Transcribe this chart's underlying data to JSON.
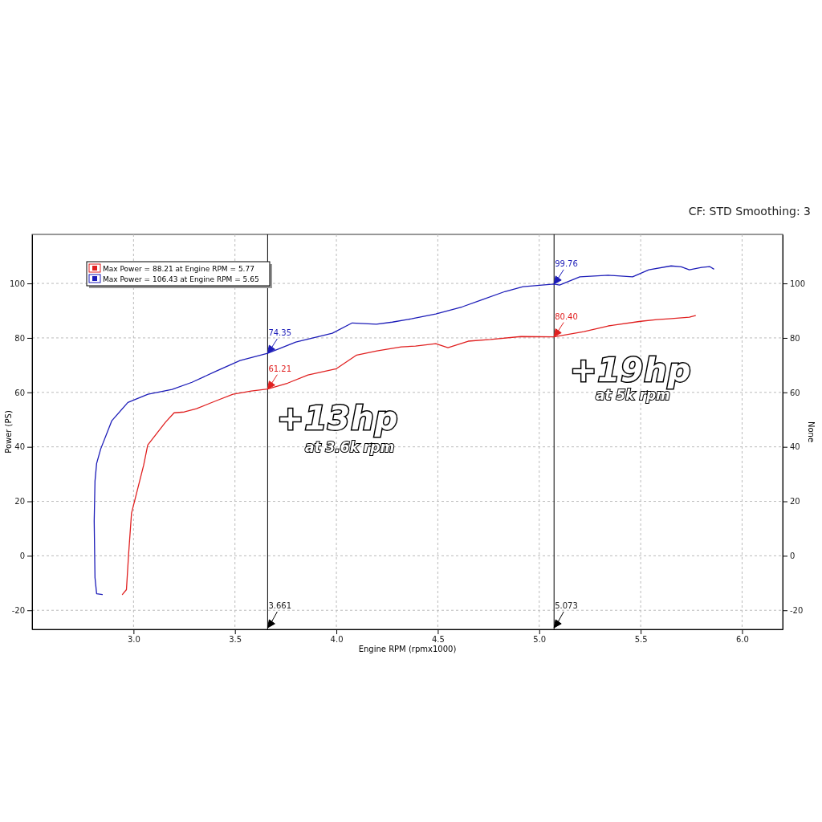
{
  "chart_data": {
    "type": "line",
    "xlabel": "Engine RPM (rpmx1000)",
    "ylabel": "Power (PS)",
    "y2label": "None",
    "xlim": [
      2.5,
      6.2
    ],
    "xticks": [
      {
        "value": 3,
        "label": "3.0"
      },
      {
        "value": 3.5,
        "label": "3.5"
      },
      {
        "value": 4,
        "label": "4.0"
      },
      {
        "value": 4.5,
        "label": "4.5"
      },
      {
        "value": 5,
        "label": "5.0"
      },
      {
        "value": 5.5,
        "label": "5.5"
      },
      {
        "value": 6,
        "label": "6.0"
      }
    ],
    "ylim": [
      -27,
      118
    ],
    "yticks": [
      -20,
      0,
      20,
      40,
      60,
      80,
      100
    ],
    "y2lim": [
      -27,
      118
    ],
    "y2ticks": [
      -20,
      0,
      20,
      40,
      60,
      80,
      100
    ],
    "grid": true,
    "legend": "top left",
    "line_style": "solid",
    "series": [
      {
        "name": "Max Power = 88.21 at Engine RPM = 5.77",
        "color": "#e02020",
        "x": [
          2.945,
          2.965,
          2.976,
          2.99,
          3.05,
          3.07,
          3.157,
          3.2,
          3.25,
          3.31,
          3.41,
          3.49,
          3.58,
          3.661,
          3.76,
          3.86,
          4.0,
          4.1,
          4.2,
          4.32,
          4.39,
          4.49,
          4.55,
          4.65,
          4.76,
          4.91,
          5.073,
          5.22,
          5.34,
          5.5,
          5.58,
          5.64,
          5.74,
          5.77
        ],
        "values": [
          -14.2,
          -12.4,
          0.9,
          15.6,
          33.3,
          40.7,
          49,
          52.5,
          52.8,
          54,
          57,
          59.3,
          60.5,
          61.21,
          63.4,
          66.4,
          68.7,
          73.7,
          75.2,
          76.7,
          77,
          77.9,
          76.4,
          78.8,
          79.4,
          80.5,
          80.4,
          82.3,
          84.4,
          86.1,
          86.7,
          87,
          87.6,
          88.21
        ],
        "value_labels": [
          null,
          null,
          null,
          null,
          null,
          null,
          null,
          null,
          null,
          null,
          null,
          null,
          null,
          "61.21",
          null,
          null,
          null,
          null,
          null,
          null,
          null,
          null,
          null,
          null,
          null,
          null,
          "80.40",
          null,
          null,
          null,
          null,
          null,
          null,
          null
        ]
      },
      {
        "name": "Max Power = 106.43 at Engine RPM = 5.65",
        "color": "#1c1cb8",
        "x": [
          2.846,
          2.818,
          2.81,
          2.806,
          2.81,
          2.818,
          2.838,
          2.893,
          2.972,
          3.071,
          3.19,
          3.288,
          3.407,
          3.525,
          3.661,
          3.8,
          3.98,
          4.078,
          4.197,
          4.276,
          4.37,
          4.49,
          4.62,
          4.71,
          4.83,
          4.92,
          5.073,
          5.1,
          5.2,
          5.34,
          5.46,
          5.54,
          5.65,
          5.7,
          5.74,
          5.8,
          5.84,
          5.86
        ],
        "values": [
          -14.2,
          -13.9,
          -8,
          12.7,
          27.4,
          33.9,
          39.2,
          49.6,
          56.3,
          59.3,
          61.1,
          63.7,
          67.8,
          71.7,
          74.35,
          78.5,
          81.7,
          85.5,
          85,
          85.8,
          87,
          88.8,
          91.4,
          93.8,
          97,
          98.8,
          99.76,
          99.4,
          102.4,
          103,
          102.4,
          105,
          106.43,
          106.1,
          105,
          105.9,
          106.2,
          105.3
        ],
        "value_labels": [
          null,
          null,
          null,
          null,
          null,
          null,
          null,
          null,
          null,
          null,
          null,
          null,
          null,
          null,
          "74.35",
          null,
          null,
          null,
          null,
          null,
          null,
          null,
          null,
          null,
          null,
          null,
          "99.76",
          null,
          null,
          null,
          null,
          null,
          null,
          null,
          null,
          null,
          null,
          null
        ]
      }
    ],
    "ref_lines": [
      {
        "axis": "x",
        "value": 3.661,
        "label": "3.661",
        "color": "#000000"
      },
      {
        "axis": "x",
        "value": 5.073,
        "label": "5.073",
        "color": "#000000"
      }
    ],
    "annotations": [
      "CF: STD Smoothing: 3",
      "+13hp",
      "at 3.6k rpm",
      "+19hp",
      "at 5k rpm"
    ]
  }
}
